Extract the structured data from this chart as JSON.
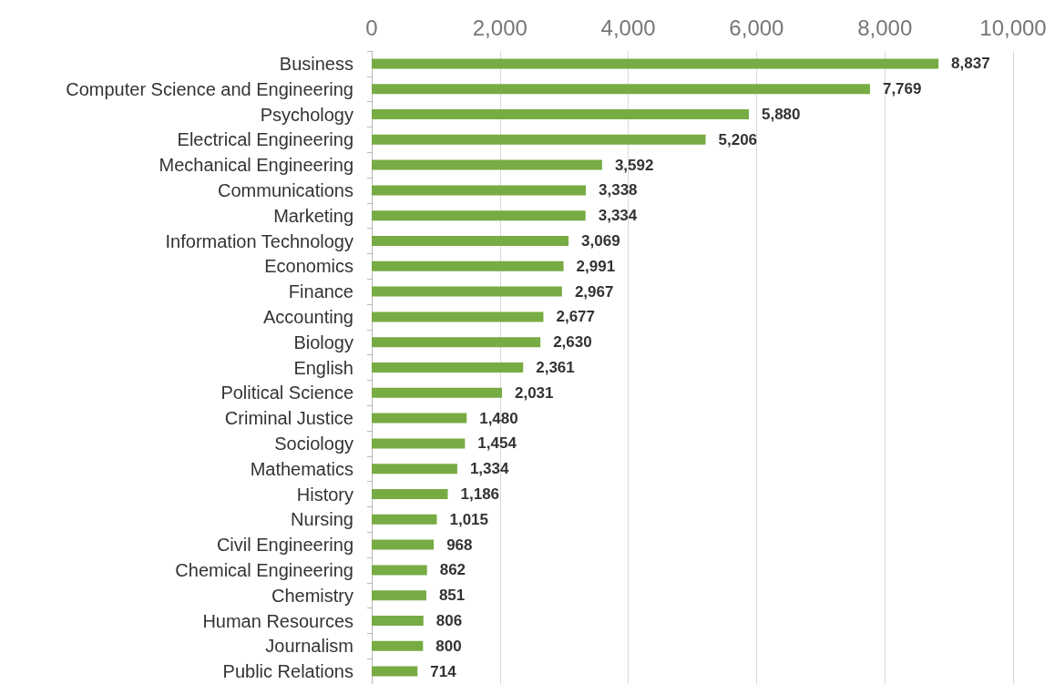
{
  "chart_data": {
    "type": "bar",
    "orientation": "horizontal",
    "categories": [
      "Business",
      "Computer Science and Engineering",
      "Psychology",
      "Electrical Engineering",
      "Mechanical Engineering",
      "Communications",
      "Marketing",
      "Information Technology",
      "Economics",
      "Finance",
      "Accounting",
      "Biology",
      "English",
      "Political Science",
      "Criminal Justice",
      "Sociology",
      "Mathematics",
      "History",
      "Nursing",
      "Civil Engineering",
      "Chemical Engineering",
      "Chemistry",
      "Human Resources",
      "Journalism",
      "Public Relations"
    ],
    "values": [
      8837,
      7769,
      5880,
      5206,
      3592,
      3338,
      3334,
      3069,
      2991,
      2967,
      2677,
      2630,
      2361,
      2031,
      1480,
      1454,
      1334,
      1186,
      1015,
      968,
      862,
      851,
      806,
      800,
      714
    ],
    "value_labels": [
      "8,837",
      "7,769",
      "5,880",
      "5,206",
      "3,592",
      "3,338",
      "3,334",
      "3,069",
      "2,991",
      "2,967",
      "2,677",
      "2,630",
      "2,361",
      "2,031",
      "1,480",
      "1,454",
      "1,334",
      "1,186",
      "1,015",
      "968",
      "862",
      "851",
      "806",
      "800",
      "714"
    ],
    "color": "#77ab43",
    "xlim": [
      0,
      10000
    ],
    "xticks": [
      0,
      {
        "value": 2000,
        "label": "2,000"
      },
      {
        "value": 4000,
        "label": "4,000"
      },
      {
        "value": 6000,
        "label": "6,000"
      },
      {
        "value": 8000,
        "label": "8,000"
      },
      {
        "value": 10000,
        "label": "10,000"
      }
    ],
    "grid": "x"
  }
}
